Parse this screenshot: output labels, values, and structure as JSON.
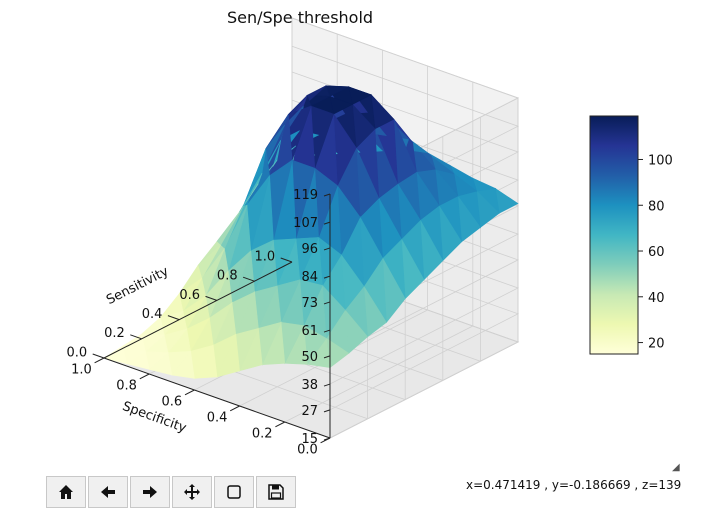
{
  "title": "Sen/Spe threshold",
  "toolbar": {
    "buttons": [
      {
        "name": "home-button",
        "icon": "home-icon"
      },
      {
        "name": "back-button",
        "icon": "arrow-left-icon"
      },
      {
        "name": "forward-button",
        "icon": "arrow-right-icon"
      },
      {
        "name": "pan-button",
        "icon": "move-icon"
      },
      {
        "name": "zoom-button",
        "icon": "square-icon"
      },
      {
        "name": "save-button",
        "icon": "floppy-icon"
      }
    ]
  },
  "status": {
    "coords": "x=0.471419 , y=-0.186669 , z=139"
  },
  "chart_data": {
    "type": "surface3d",
    "title": "Sen/Spe threshold",
    "xlabel": "Specificity",
    "ylabel": "Sensitivity",
    "zlabel": "",
    "x_ticks": [
      "0.0",
      "0.2",
      "0.4",
      "0.6",
      "0.8",
      "1.0"
    ],
    "y_ticks": [
      "0.0",
      "0.2",
      "0.4",
      "0.6",
      "0.8",
      "1.0"
    ],
    "z_ticks": [
      "15",
      "27",
      "38",
      "50",
      "61",
      "73",
      "84",
      "96",
      "107",
      "119"
    ],
    "x": [
      0.0,
      0.1,
      0.2,
      0.3,
      0.4,
      0.5,
      0.6,
      0.7,
      0.8,
      0.9,
      1.0
    ],
    "y": [
      0.0,
      0.1,
      0.2,
      0.3,
      0.4,
      0.5,
      0.6,
      0.7,
      0.8,
      0.9,
      1.0
    ],
    "zlim": [
      15,
      119
    ],
    "z": [
      [
        45,
        47,
        50,
        52,
        58,
        62,
        66,
        70,
        72,
        74,
        74
      ],
      [
        43,
        50,
        58,
        64,
        72,
        76,
        80,
        82,
        82,
        80,
        77
      ],
      [
        40,
        52,
        65,
        74,
        86,
        90,
        92,
        93,
        90,
        84,
        78
      ],
      [
        36,
        50,
        64,
        78,
        96,
        108,
        112,
        112,
        98,
        88,
        80
      ],
      [
        30,
        44,
        58,
        74,
        100,
        119,
        119,
        119,
        104,
        92,
        82
      ],
      [
        24,
        38,
        52,
        70,
        100,
        119,
        119,
        119,
        104,
        90,
        80
      ],
      [
        20,
        30,
        44,
        62,
        90,
        112,
        116,
        116,
        100,
        88,
        76
      ],
      [
        18,
        24,
        34,
        50,
        74,
        94,
        100,
        104,
        92,
        84,
        72
      ],
      [
        17,
        20,
        26,
        36,
        52,
        66,
        76,
        86,
        86,
        80,
        68
      ],
      [
        16,
        17,
        20,
        26,
        36,
        46,
        56,
        64,
        70,
        72,
        64
      ],
      [
        15,
        16,
        17,
        20,
        26,
        34,
        40,
        46,
        54,
        60,
        56
      ]
    ],
    "colorbar": {
      "ticks": [
        20,
        40,
        60,
        80,
        100
      ],
      "range": [
        15,
        119
      ],
      "colormap": "YlGnBu"
    }
  }
}
